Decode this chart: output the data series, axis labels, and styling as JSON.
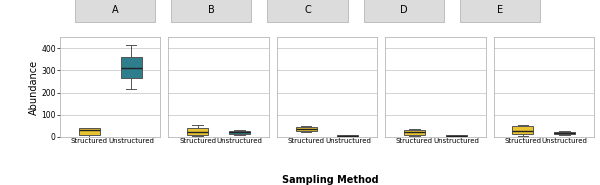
{
  "panels": [
    "A",
    "B",
    "C",
    "D",
    "E"
  ],
  "structured_color": "#E8C430",
  "unstructured_color": "#2E7E8E",
  "box_edge_color": "#555555",
  "median_color": "#222222",
  "whisker_color": "#555555",
  "strip_bg": "#DCDCDC",
  "strip_edge": "#AAAAAA",
  "plot_bg": "#FFFFFF",
  "fig_bg": "#FFFFFF",
  "grid_color": "#CCCCCC",
  "xlabel": "Sampling Method",
  "ylabel": "Abundance",
  "ylim": [
    0,
    450
  ],
  "yticks": [
    0,
    100,
    200,
    300,
    400
  ],
  "xtick_labels": [
    "Structured",
    "Unstructured"
  ],
  "structured_stats": [
    {
      "q1": 10,
      "median": 30,
      "q3": 40,
      "whislo": 0,
      "whishi": 42
    },
    {
      "q1": 10,
      "median": 20,
      "q3": 42,
      "whislo": 2,
      "whishi": 55
    },
    {
      "q1": 28,
      "median": 37,
      "q3": 45,
      "whislo": 20,
      "whishi": 50
    },
    {
      "q1": 10,
      "median": 22,
      "q3": 30,
      "whislo": 5,
      "whishi": 35
    },
    {
      "q1": 15,
      "median": 28,
      "q3": 50,
      "whislo": 5,
      "whishi": 55
    }
  ],
  "unstructured_stats": [
    {
      "q1": 265,
      "median": 310,
      "q3": 360,
      "whislo": 215,
      "whishi": 415
    },
    {
      "q1": 14,
      "median": 22,
      "q3": 28,
      "whislo": 10,
      "whishi": 30
    },
    {
      "q1": 3,
      "median": 5,
      "q3": 8,
      "whislo": 2,
      "whishi": 9
    },
    {
      "q1": 3,
      "median": 5,
      "q3": 8,
      "whislo": 2,
      "whishi": 9
    },
    {
      "q1": 12,
      "median": 18,
      "q3": 24,
      "whislo": 10,
      "whishi": 28
    }
  ]
}
